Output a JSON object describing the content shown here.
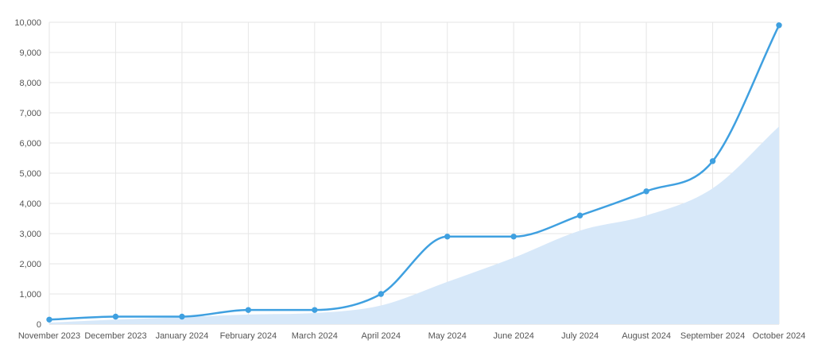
{
  "chart_data": {
    "type": "line",
    "categories": [
      "November 2023",
      "December 2023",
      "January 2024",
      "February 2024",
      "March 2024",
      "April 2024",
      "May 2024",
      "June 2024",
      "July 2024",
      "August 2024",
      "September 2024",
      "October 2024"
    ],
    "series": [
      {
        "values": [
          150,
          250,
          250,
          470,
          470,
          1000,
          2900,
          2900,
          3600,
          4400,
          5400,
          9900
        ],
        "color": "#3fa0e0",
        "style": "line-with-points"
      },
      {
        "values": [
          50,
          150,
          230,
          320,
          370,
          620,
          1400,
          2200,
          3100,
          3600,
          4500,
          6550
        ],
        "color": "#d7e8f9",
        "style": "filled-area"
      }
    ],
    "ylim": [
      0,
      10000
    ],
    "yticks": [
      0,
      1000,
      2000,
      3000,
      4000,
      5000,
      6000,
      7000,
      8000,
      9000,
      10000
    ],
    "ytick_labels": [
      "0",
      "1,000",
      "2,000",
      "3,000",
      "4,000",
      "5,000",
      "6,000",
      "7,000",
      "8,000",
      "9,000",
      "10,000"
    ],
    "grid": true,
    "legend": "none"
  }
}
